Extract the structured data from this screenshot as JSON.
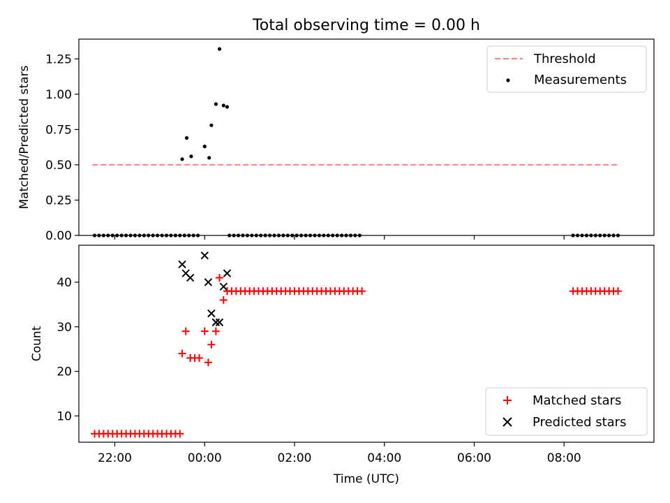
{
  "figure_title": "Total observing time = 0.00 h",
  "chart_data": [
    {
      "type": "scatter",
      "ylabel": "Matched/Predicted stars",
      "xlabel": "",
      "xlim": [
        21.2,
        34.0
      ],
      "ylim": [
        0,
        1.39
      ],
      "yticks": [
        0.0,
        0.25,
        0.5,
        0.75,
        1.0,
        1.25
      ],
      "ytick_labels": [
        "0.00",
        "0.25",
        "0.50",
        "0.75",
        "1.00",
        "1.25"
      ],
      "xticks": [
        22,
        24,
        26,
        28,
        30,
        32
      ],
      "show_xtick_labels": false,
      "legend": {
        "position": "upper right",
        "entries": [
          "Threshold",
          "Measurements"
        ]
      },
      "series": [
        {
          "name": "Threshold",
          "kind": "line",
          "style": "dashed",
          "color": "#ff8080",
          "x": [
            21.5,
            33.2
          ],
          "y": [
            0.5,
            0.5
          ]
        },
        {
          "name": "Measurements",
          "kind": "scatter",
          "color": "#000000",
          "points": [
            [
              23.5,
              0.54
            ],
            [
              23.6,
              0.69
            ],
            [
              23.7,
              0.56
            ],
            [
              24.0,
              0.63
            ],
            [
              24.1,
              0.55
            ],
            [
              24.15,
              0.78
            ],
            [
              24.25,
              0.93
            ],
            [
              24.33,
              1.32
            ],
            [
              24.42,
              0.92
            ],
            [
              24.5,
              0.91
            ]
          ],
          "zero_ranges": [
            [
              21.55,
              23.9
            ],
            [
              24.55,
              27.5
            ],
            [
              32.2,
              33.2
            ]
          ]
        }
      ]
    },
    {
      "type": "scatter",
      "ylabel": "Count",
      "xlabel": "Time (UTC)",
      "xlim": [
        21.2,
        34.0
      ],
      "ylim": [
        4.1,
        48.3
      ],
      "yticks": [
        10,
        20,
        30,
        40
      ],
      "ytick_labels": [
        "10",
        "20",
        "30",
        "40"
      ],
      "xticks": [
        22,
        24,
        26,
        28,
        30,
        32
      ],
      "xtick_labels": [
        "22:00",
        "00:00",
        "02:00",
        "04:00",
        "06:00",
        "08:00"
      ],
      "legend": {
        "position": "lower right",
        "entries": [
          "Matched stars",
          "Predicted stars"
        ]
      },
      "series": [
        {
          "name": "Matched stars",
          "marker": "+",
          "color": "#ff0000",
          "points": [
            [
              23.5,
              24
            ],
            [
              23.58,
              29
            ],
            [
              23.68,
              23
            ],
            [
              23.78,
              23
            ],
            [
              23.88,
              23
            ],
            [
              24.0,
              29
            ],
            [
              24.08,
              22
            ],
            [
              24.15,
              26
            ],
            [
              24.25,
              29
            ],
            [
              24.33,
              41
            ],
            [
              24.42,
              36
            ],
            [
              24.5,
              38
            ]
          ],
          "runs": [
            [
              21.55,
              23.5,
              6,
              0.1
            ],
            [
              24.5,
              27.5,
              38,
              0.1
            ],
            [
              32.2,
              33.2,
              38,
              0.1
            ]
          ]
        },
        {
          "name": "Predicted stars",
          "marker": "x",
          "color": "#000000",
          "points": [
            [
              23.5,
              44
            ],
            [
              23.58,
              42
            ],
            [
              23.68,
              41
            ],
            [
              24.0,
              46
            ],
            [
              24.08,
              40
            ],
            [
              24.15,
              33
            ],
            [
              24.25,
              31
            ],
            [
              24.33,
              31
            ],
            [
              24.42,
              39
            ],
            [
              24.5,
              42
            ]
          ]
        }
      ]
    }
  ]
}
